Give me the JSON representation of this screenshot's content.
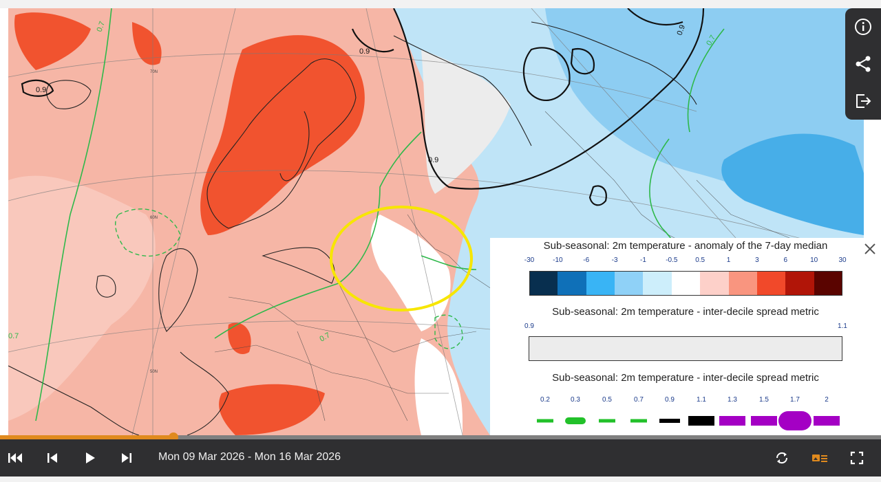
{
  "viewer": {
    "date_range": "Mon 09 Mar 2026 - Mon 16 Mar 2026",
    "progress": 0.197,
    "accent_color": "#e08a1e"
  },
  "map": {
    "latitude_labels": [
      "70N",
      "60N",
      "50N"
    ],
    "contour_labels": [
      "0.7",
      "0.9",
      "0.9",
      "0.9",
      "0.7",
      "0.7",
      "0.7",
      "0.9"
    ],
    "highlight_color": "#f7e600"
  },
  "side_tools": {
    "info_icon": "info-icon",
    "share_icon": "share-icon",
    "export_icon": "export-icon"
  },
  "legend": {
    "anomaly_title": "Sub-seasonal: 2m temperature - anomaly of the 7-day median",
    "anomaly_ticks": [
      "-30",
      "-10",
      "-6",
      "-3",
      "-1",
      "-0.5",
      "0.5",
      "1",
      "3",
      "6",
      "10",
      "30"
    ],
    "anomaly_colors": [
      "#082f4f",
      "#0f70b8",
      "#39b4f5",
      "#8fd1f7",
      "#cdeefb",
      "#ffffff",
      "#fdd0c9",
      "#f9957f",
      "#f1492a",
      "#b11508",
      "#5a0400"
    ],
    "spread_title_1": "Sub-seasonal: 2m temperature - inter-decile spread metric",
    "spread_range_min": "0.9",
    "spread_range_max": "1.1",
    "spread_fill": "#ececec",
    "spread_title_2": "Sub-seasonal: 2m temperature - inter-decile spread metric",
    "spread_ticks": [
      "0.2",
      "0.3",
      "0.5",
      "0.7",
      "0.9",
      "1.1",
      "1.3",
      "1.5",
      "1.7",
      "2"
    ],
    "spread_styles": [
      {
        "color": "#22c12a",
        "style": "dash"
      },
      {
        "color": "#22c12a",
        "style": "dots"
      },
      {
        "color": "#22c12a",
        "style": "dash"
      },
      {
        "color": "#22c12a",
        "style": "dash"
      },
      {
        "color": "#000000",
        "style": "thin"
      },
      {
        "color": "#000000",
        "style": "thick"
      },
      {
        "color": "#a400c4",
        "style": "thick"
      },
      {
        "color": "#a400c4",
        "style": "thick"
      },
      {
        "color": "#a400c4",
        "style": "blob"
      },
      {
        "color": "#a400c4",
        "style": "thick"
      }
    ]
  }
}
